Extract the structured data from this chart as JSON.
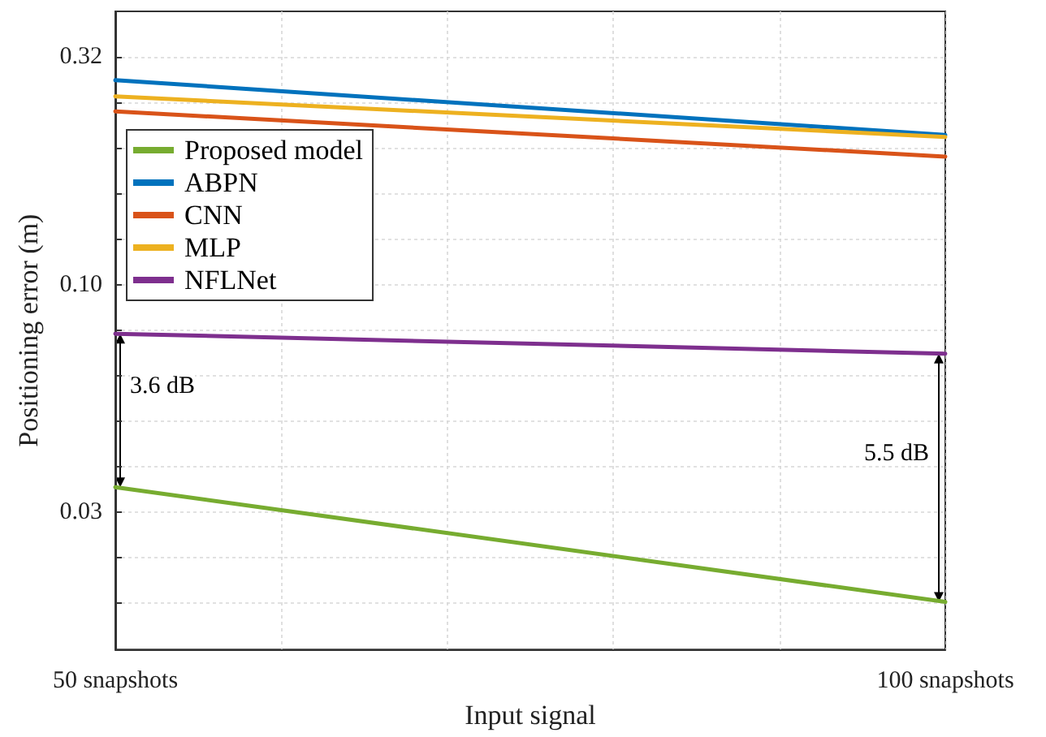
{
  "chart_data": {
    "type": "line",
    "xlabel": "Input signal",
    "ylabel": "Positioning error (m)",
    "x": [
      50,
      100
    ],
    "series": [
      {
        "name": "Proposed model",
        "color": "#77ac30",
        "values": [
          0.0359,
          0.0201
        ]
      },
      {
        "name": "ABPN",
        "color": "#0072bd",
        "values": [
          0.281,
          0.213
        ]
      },
      {
        "name": "CNN",
        "color": "#d95319",
        "values": [
          0.24,
          0.191
        ]
      },
      {
        "name": "MLP",
        "color": "#edb120",
        "values": [
          0.259,
          0.211
        ]
      },
      {
        "name": "NFLNet",
        "color": "#7e2f8e",
        "values": [
          0.078,
          0.0705
        ]
      }
    ],
    "xlim": [
      50,
      100
    ],
    "xticks": [
      {
        "value": 50,
        "label": "50 snapshots"
      },
      {
        "value": 60,
        "label": null
      },
      {
        "value": 70,
        "label": null
      },
      {
        "value": 80,
        "label": null
      },
      {
        "value": 90,
        "label": null
      },
      {
        "value": 100,
        "label": "100 snapshots"
      }
    ],
    "ylim": [
      0.0158,
      0.398
    ],
    "yticks": [
      {
        "value": 0.01995,
        "label": null
      },
      {
        "value": 0.02512,
        "label": null
      },
      {
        "value": 0.03162,
        "label": "0.03"
      },
      {
        "value": 0.03981,
        "label": null
      },
      {
        "value": 0.05012,
        "label": null
      },
      {
        "value": 0.0631,
        "label": null
      },
      {
        "value": 0.07943,
        "label": null
      },
      {
        "value": 0.1,
        "label": "0.10"
      },
      {
        "value": 0.1259,
        "label": null
      },
      {
        "value": 0.1585,
        "label": null
      },
      {
        "value": 0.1995,
        "label": null
      },
      {
        "value": 0.2512,
        "label": null
      },
      {
        "value": 0.3162,
        "label": "0.32"
      }
    ],
    "log": "y",
    "grid": true,
    "legend": "top left",
    "marker": "none",
    "line_style": "solid",
    "annotations": [
      "3.6 dB",
      "5.5 dB"
    ]
  }
}
